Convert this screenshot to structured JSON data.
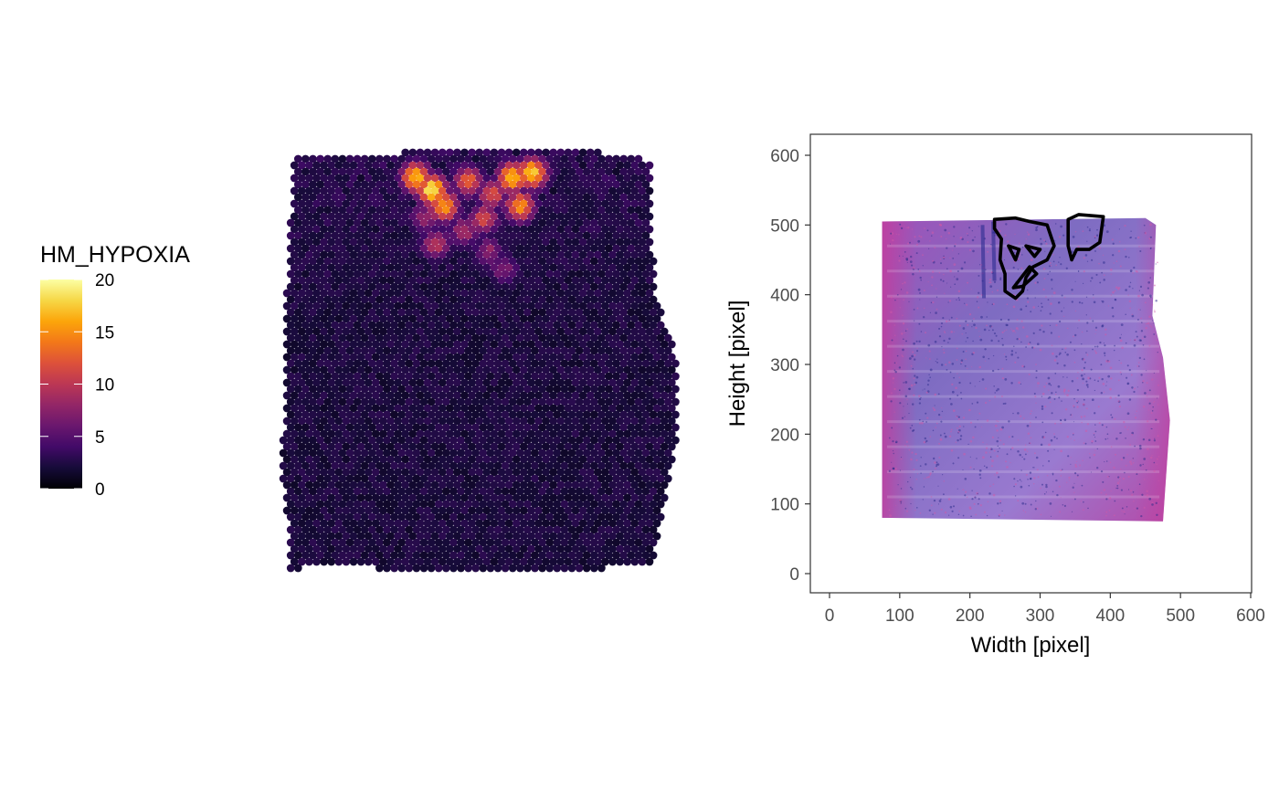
{
  "chart_data": [
    {
      "type": "heatmap",
      "title": "",
      "legend": {
        "title": "HM_HYPOXIA",
        "ticks": [
          0,
          5,
          10,
          15,
          20
        ],
        "tick_labels": [
          "0",
          "5",
          "10",
          "15",
          "20"
        ],
        "range": [
          0,
          20
        ],
        "palette": "inferno",
        "placement": "left"
      },
      "hotspots": [
        {
          "col": 0.38,
          "row": 0.09,
          "value": 19
        },
        {
          "col": 0.34,
          "row": 0.06,
          "value": 17
        },
        {
          "col": 0.41,
          "row": 0.13,
          "value": 16
        },
        {
          "col": 0.47,
          "row": 0.07,
          "value": 13
        },
        {
          "col": 0.53,
          "row": 0.1,
          "value": 12
        },
        {
          "col": 0.58,
          "row": 0.06,
          "value": 17
        },
        {
          "col": 0.63,
          "row": 0.05,
          "value": 18
        },
        {
          "col": 0.6,
          "row": 0.13,
          "value": 15
        },
        {
          "col": 0.51,
          "row": 0.16,
          "value": 11
        },
        {
          "col": 0.46,
          "row": 0.19,
          "value": 9
        },
        {
          "col": 0.39,
          "row": 0.22,
          "value": 10
        },
        {
          "col": 0.52,
          "row": 0.24,
          "value": 8
        },
        {
          "col": 0.56,
          "row": 0.28,
          "value": 7
        },
        {
          "col": 0.36,
          "row": 0.16,
          "value": 8
        }
      ],
      "background_level": 2.2
    },
    {
      "type": "image-contour",
      "xlabel": "Width [pixel]",
      "ylabel": "Height [pixel]",
      "xlim": [
        -25,
        605
      ],
      "ylim": [
        -25,
        630
      ],
      "xticks": [
        0,
        100,
        200,
        300,
        400,
        500,
        600
      ],
      "xtick_labels": [
        "0",
        "100",
        "200",
        "300",
        "400",
        "500",
        "600"
      ],
      "yticks": [
        0,
        100,
        200,
        300,
        400,
        500,
        600
      ],
      "ytick_labels": [
        "0",
        "100",
        "200",
        "300",
        "400",
        "500",
        "600"
      ],
      "grid": false,
      "tissue_outline": [
        [
          75,
          80
        ],
        [
          475,
          75
        ],
        [
          485,
          220
        ],
        [
          475,
          310
        ],
        [
          460,
          370
        ],
        [
          465,
          500
        ],
        [
          450,
          510
        ],
        [
          75,
          505
        ]
      ],
      "contour_regions": [
        [
          [
            235,
            508
          ],
          [
            265,
            510
          ],
          [
            285,
            505
          ],
          [
            310,
            500
          ],
          [
            320,
            470
          ],
          [
            310,
            450
          ],
          [
            290,
            440
          ],
          [
            280,
            425
          ],
          [
            275,
            405
          ],
          [
            265,
            395
          ],
          [
            250,
            405
          ],
          [
            250,
            430
          ],
          [
            243,
            450
          ],
          [
            245,
            480
          ],
          [
            235,
            495
          ]
        ],
        [
          [
            340,
            508
          ],
          [
            355,
            515
          ],
          [
            390,
            512
          ],
          [
            385,
            475
          ],
          [
            370,
            465
          ],
          [
            352,
            465
          ],
          [
            345,
            450
          ],
          [
            340,
            470
          ]
        ],
        [
          [
            255,
            470
          ],
          [
            270,
            465
          ],
          [
            265,
            450
          ]
        ],
        [
          [
            280,
            470
          ],
          [
            300,
            465
          ],
          [
            292,
            455
          ]
        ],
        [
          [
            262,
            410
          ],
          [
            285,
            440
          ],
          [
            295,
            430
          ],
          [
            275,
            412
          ]
        ]
      ]
    }
  ]
}
